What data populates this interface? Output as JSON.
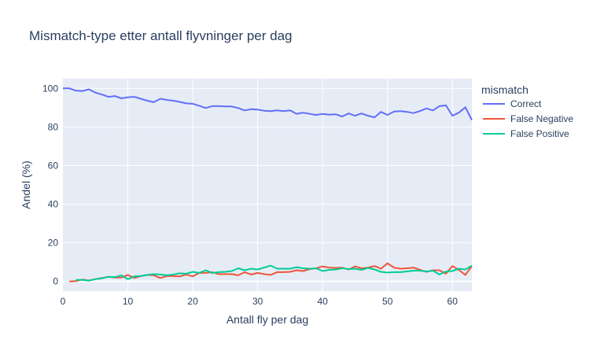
{
  "chart_data": {
    "type": "line",
    "title": "Mismatch-type etter antall flyvninger per dag",
    "xlabel": "Antall fly per dag",
    "ylabel": "Andel (%)",
    "xlim": [
      0,
      63
    ],
    "ylim": [
      -5,
      105
    ],
    "xticks": [
      0,
      10,
      20,
      30,
      40,
      50,
      60
    ],
    "yticks": [
      0,
      20,
      40,
      60,
      80,
      100
    ],
    "grid": true,
    "legend": {
      "title": "mismatch",
      "placement": "top-right"
    },
    "series": [
      {
        "name": "Correct",
        "color": "#636efa",
        "x": [
          0,
          1,
          2,
          3,
          4,
          5,
          6,
          7,
          8,
          9,
          10,
          11,
          12,
          13,
          14,
          15,
          16,
          17,
          18,
          19,
          20,
          21,
          22,
          23,
          24,
          25,
          26,
          27,
          28,
          29,
          30,
          31,
          32,
          33,
          34,
          35,
          36,
          37,
          38,
          39,
          40,
          41,
          42,
          43,
          44,
          45,
          46,
          47,
          48,
          49,
          50,
          51,
          52,
          53,
          54,
          55,
          56,
          57,
          58,
          59,
          60,
          61,
          62,
          63
        ],
        "y": [
          100,
          100,
          98.8,
          98.6,
          99.5,
          97.8,
          96.8,
          95.6,
          96.0,
          94.8,
          95.4,
          95.6,
          94.6,
          93.6,
          92.8,
          94.6,
          94.0,
          93.6,
          93.0,
          92.2,
          92.0,
          91.0,
          89.8,
          90.8,
          90.8,
          90.6,
          90.6,
          89.8,
          88.6,
          89.2,
          89.0,
          88.4,
          88.2,
          88.6,
          88.2,
          88.6,
          86.8,
          87.4,
          86.8,
          86.2,
          86.8,
          86.4,
          86.6,
          85.4,
          87.0,
          85.8,
          87.0,
          85.8,
          85.0,
          87.8,
          86.2,
          88.0,
          88.2,
          87.8,
          87.2,
          88.2,
          89.6,
          88.6,
          90.8,
          91.2,
          85.8,
          87.4,
          90.2,
          83.6
        ]
      },
      {
        "name": "False Negative",
        "color": "#ef553b",
        "x": [
          1,
          2,
          3,
          4,
          5,
          6,
          7,
          8,
          9,
          10,
          11,
          12,
          13,
          14,
          15,
          16,
          17,
          18,
          19,
          20,
          21,
          22,
          23,
          24,
          25,
          26,
          27,
          28,
          29,
          30,
          31,
          32,
          33,
          34,
          35,
          36,
          37,
          38,
          39,
          40,
          41,
          42,
          43,
          44,
          45,
          46,
          47,
          48,
          49,
          50,
          51,
          52,
          53,
          54,
          55,
          56,
          57,
          58,
          59,
          60,
          61,
          62,
          63
        ],
        "y": [
          0,
          0.2,
          1.0,
          0.5,
          1.2,
          1.8,
          2.4,
          2.0,
          2.0,
          3.4,
          1.8,
          2.8,
          3.4,
          3.2,
          1.8,
          2.8,
          2.8,
          2.6,
          3.6,
          2.6,
          4.4,
          4.4,
          4.8,
          3.8,
          3.8,
          3.8,
          3.2,
          4.8,
          3.6,
          4.4,
          3.8,
          3.4,
          4.8,
          4.8,
          5.0,
          5.8,
          5.4,
          6.4,
          6.8,
          7.8,
          7.2,
          7.0,
          7.2,
          6.2,
          7.8,
          6.8,
          7.2,
          8.0,
          6.6,
          9.4,
          7.2,
          6.6,
          6.8,
          7.2,
          6.0,
          5.0,
          5.8,
          5.8,
          4.0,
          8.0,
          6.0,
          3.4,
          8.0
        ]
      },
      {
        "name": "False Positive",
        "color": "#00cc96",
        "x": [
          2,
          3,
          4,
          5,
          6,
          7,
          8,
          9,
          10,
          11,
          12,
          13,
          14,
          15,
          16,
          17,
          18,
          19,
          20,
          21,
          22,
          23,
          24,
          25,
          26,
          27,
          28,
          29,
          30,
          31,
          32,
          33,
          34,
          35,
          36,
          37,
          38,
          39,
          40,
          41,
          42,
          43,
          44,
          45,
          46,
          47,
          48,
          49,
          50,
          51,
          52,
          53,
          54,
          55,
          56,
          57,
          58,
          59,
          60,
          61,
          62,
          63
        ],
        "y": [
          0.8,
          0.8,
          0.4,
          1.2,
          1.6,
          2.4,
          2.2,
          3.2,
          1.2,
          2.6,
          2.8,
          3.4,
          3.8,
          3.6,
          3.2,
          3.6,
          4.2,
          4.0,
          5.0,
          4.4,
          5.8,
          4.4,
          4.8,
          5.0,
          5.4,
          6.8,
          5.8,
          6.6,
          6.2,
          7.2,
          8.2,
          6.6,
          6.6,
          6.6,
          7.4,
          6.8,
          6.6,
          6.8,
          5.4,
          6.0,
          6.2,
          6.8,
          6.4,
          6.6,
          6.0,
          7.0,
          6.2,
          5.0,
          4.6,
          4.8,
          4.8,
          5.2,
          5.6,
          5.6,
          5.2,
          5.6,
          3.6,
          5.2,
          5.4,
          6.6,
          6.2,
          8.2
        ]
      }
    ]
  }
}
